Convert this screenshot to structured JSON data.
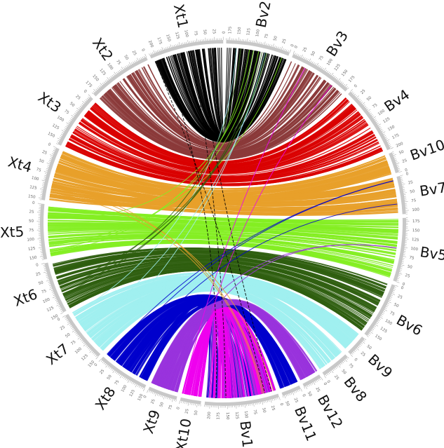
{
  "chart_data": {
    "type": "circos",
    "tick_interval_major": 25,
    "tick_interval_minor": 5,
    "segments": [
      {
        "name": "Bv2",
        "length": 185,
        "tick_direction": "counterclockwise"
      },
      {
        "name": "Bv3",
        "length": 185,
        "tick_direction": "clockwise"
      },
      {
        "name": "Bv4",
        "length": 200,
        "tick_direction": "clockwise"
      },
      {
        "name": "Bv10",
        "length": 60,
        "tick_direction": "counterclockwise"
      },
      {
        "name": "Bv7",
        "length": 110,
        "tick_direction": "clockwise"
      },
      {
        "name": "Bv5",
        "length": 185,
        "tick_direction": "counterclockwise"
      },
      {
        "name": "Bv6",
        "length": 165,
        "tick_direction": "clockwise"
      },
      {
        "name": "Bv9",
        "length": 60,
        "tick_direction": "counterclockwise"
      },
      {
        "name": "Bv8",
        "length": 85,
        "tick_direction": "counterclockwise"
      },
      {
        "name": "Bv12",
        "length": 55,
        "tick_direction": "clockwise"
      },
      {
        "name": "Bv11",
        "length": 55,
        "tick_direction": "clockwise"
      },
      {
        "name": "Bv1",
        "length": 215,
        "tick_direction": "clockwise"
      },
      {
        "name": "Xt10",
        "length": 60,
        "tick_direction": "counterclockwise"
      },
      {
        "name": "Xt9",
        "length": 85,
        "tick_direction": "counterclockwise"
      },
      {
        "name": "Xt8",
        "length": 150,
        "tick_direction": "counterclockwise"
      },
      {
        "name": "Xt7",
        "length": 150,
        "tick_direction": "counterclockwise"
      },
      {
        "name": "Xt6",
        "length": 150,
        "tick_direction": "counterclockwise"
      },
      {
        "name": "Xt5",
        "length": 160,
        "tick_direction": "counterclockwise"
      },
      {
        "name": "Xt4",
        "length": 155,
        "tick_direction": "counterclockwise"
      },
      {
        "name": "Xt3",
        "length": 165,
        "tick_direction": "counterclockwise"
      },
      {
        "name": "Xt2",
        "length": 185,
        "tick_direction": "counterclockwise"
      },
      {
        "name": "Xt1",
        "length": 215,
        "tick_direction": "counterclockwise"
      }
    ],
    "link_groups": [
      {
        "from": "Xt2",
        "to": "Bv3",
        "color": "#8b3a3a",
        "density": "dense"
      },
      {
        "from": "Xt3",
        "to": "Bv4",
        "color": "#d90000",
        "density": "dense"
      },
      {
        "from": "Xt4",
        "to": "Bv10",
        "color": "#e8a02a",
        "density": "dense"
      },
      {
        "from": "Xt4",
        "to": "Bv7",
        "color": "#e8a02a",
        "density": "dense"
      },
      {
        "from": "Xt5",
        "to": "Bv5",
        "color": "#84ee22",
        "density": "dense"
      },
      {
        "from": "Xt6",
        "to": "Bv6",
        "color": "#2f5e0f",
        "density": "dense"
      },
      {
        "from": "Xt7",
        "to": "Bv9",
        "color": "#a0f0f0",
        "density": "dense"
      },
      {
        "from": "Xt7",
        "to": "Bv8",
        "color": "#a0f0f0",
        "density": "dense"
      },
      {
        "from": "Xt8",
        "to": "Bv11",
        "color": "#0000cc",
        "density": "dense"
      },
      {
        "from": "Xt8",
        "to": "Bv1",
        "color": "#0000cc",
        "density": "dense"
      },
      {
        "from": "Xt9",
        "to": "Bv12",
        "color": "#9933dd",
        "density": "dense"
      },
      {
        "from": "Xt9",
        "to": "Bv1",
        "color": "#9933dd",
        "density": "dense"
      },
      {
        "from": "Xt10",
        "to": "Bv1",
        "color": "#ee00ee",
        "density": "dense"
      },
      {
        "from": "Xt1",
        "to": "Bv2",
        "color": "#000000",
        "density": "dense"
      },
      {
        "from": "Xt5",
        "to": "Bv2",
        "color": "#84ee22",
        "density": "sparse"
      },
      {
        "from": "Xt1",
        "to": "Bv1",
        "color": "#000000",
        "density": "sparse"
      },
      {
        "from": "Xt10",
        "to": "Bv3",
        "color": "#ee00ee",
        "density": "sparse"
      },
      {
        "from": "Xt8",
        "to": "Bv7",
        "color": "#0000cc",
        "density": "sparse"
      },
      {
        "from": "Xt9",
        "to": "Bv5",
        "color": "#9933dd",
        "density": "sparse"
      },
      {
        "from": "Xt4",
        "to": "Bv1",
        "color": "#e8a02a",
        "density": "sparse"
      },
      {
        "from": "Xt7",
        "to": "Bv2",
        "color": "#a0f0f0",
        "density": "sparse"
      },
      {
        "from": "Xt6",
        "to": "Bv2",
        "color": "#2f5e0f",
        "density": "sparse"
      }
    ],
    "ideogram_color": "#c8c8c8"
  }
}
